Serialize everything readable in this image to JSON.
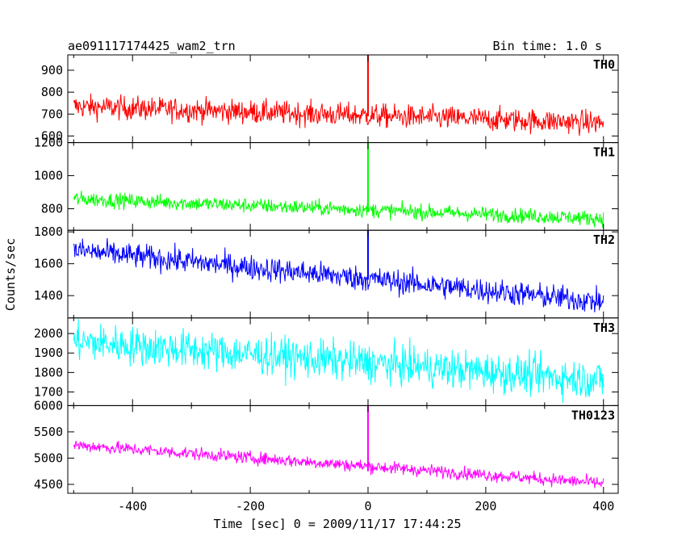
{
  "header": {
    "title": "ae091117174425_wam2_trn",
    "bin_time": "Bin time: 1.0 s"
  },
  "axes": {
    "xlabel": "Time [sec] 0 = 2009/11/17 17:44:25",
    "ylabel": "Counts/sec"
  },
  "chart_data": {
    "type": "line",
    "title": "ae091117174425_wam2_trn",
    "xlabel": "Time [sec] 0 = 2009/11/17 17:44:25",
    "ylabel": "Counts/sec",
    "xlim": [
      -510,
      425
    ],
    "x_ticks": [
      -400,
      -200,
      0,
      200,
      400
    ],
    "grid": false,
    "note_bin_time_s": 1.0,
    "panels": [
      {
        "name": "TH0",
        "color": "#ff0000",
        "ylim": [
          570,
          970
        ],
        "y_ticks": [
          600,
          700,
          800,
          900
        ],
        "trend": [
          {
            "x": -500,
            "y": 735
          },
          {
            "x": 400,
            "y": 660
          }
        ],
        "noise": 38,
        "spike": {
          "x": 0,
          "peak": 1000,
          "base": 690
        }
      },
      {
        "name": "TH1",
        "color": "#00ff00",
        "ylim": [
          670,
          1200
        ],
        "y_ticks": [
          800,
          1000,
          1200
        ],
        "trend": [
          {
            "x": -500,
            "y": 860
          },
          {
            "x": 400,
            "y": 740
          }
        ],
        "noise": 32,
        "spike": {
          "x": 0,
          "peak": 1200,
          "base": 780
        }
      },
      {
        "name": "TH2",
        "color": "#0000ff",
        "ylim": [
          1260,
          1810
        ],
        "y_ticks": [
          1400,
          1600,
          1800
        ],
        "trend": [
          {
            "x": -500,
            "y": 1685
          },
          {
            "x": 400,
            "y": 1360
          }
        ],
        "noise": 55,
        "spike": {
          "x": 0,
          "peak": 1810,
          "base": 1500
        }
      },
      {
        "name": "TH3",
        "color": "#00ffff",
        "ylim": [
          1630,
          2080
        ],
        "y_ticks": [
          1700,
          1800,
          1900,
          2000
        ],
        "trend": [
          {
            "x": -500,
            "y": 1960
          },
          {
            "x": 400,
            "y": 1760
          }
        ],
        "noise": 70,
        "spike": {
          "x": 0,
          "peak": 1870,
          "base": 1810
        }
      },
      {
        "name": "TH0123",
        "color": "#ff00ff",
        "ylim": [
          4330,
          6000
        ],
        "y_ticks": [
          4500,
          5000,
          5500,
          6000
        ],
        "trend": [
          {
            "x": -500,
            "y": 5250
          },
          {
            "x": 400,
            "y": 4520
          }
        ],
        "noise": 85,
        "spike": {
          "x": 0,
          "peak": 6000,
          "base": 4750
        }
      }
    ]
  }
}
